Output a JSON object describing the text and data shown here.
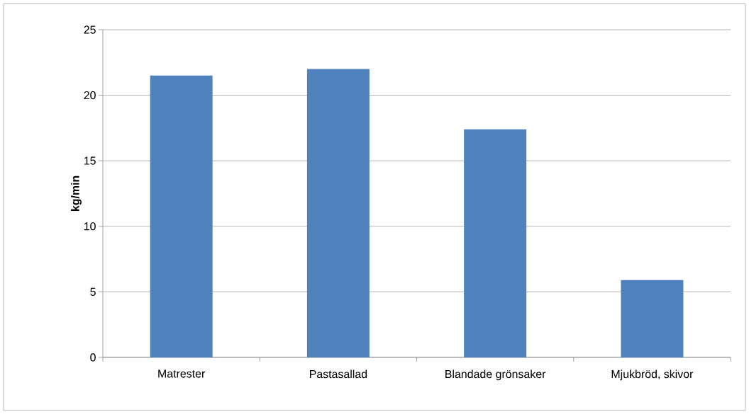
{
  "chart_data": {
    "type": "bar",
    "ylabel": "kg/min",
    "categories": [
      "Matrester",
      "Pastasallad",
      "Blandade grönsaker",
      "Mjukbröd, skivor"
    ],
    "values": [
      21.5,
      22.0,
      17.4,
      5.9
    ],
    "color": "#4f81bd",
    "ylim": [
      0,
      25
    ],
    "yticks": [
      0,
      5,
      10,
      15,
      20,
      25
    ],
    "grid": "y"
  }
}
